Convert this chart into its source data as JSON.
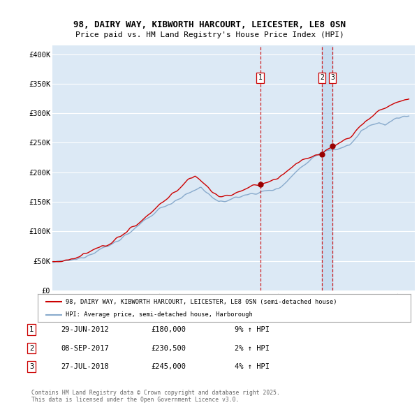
{
  "title_line1": "98, DAIRY WAY, KIBWORTH HARCOURT, LEICESTER, LE8 0SN",
  "title_line2": "Price paid vs. HM Land Registry's House Price Index (HPI)",
  "ylabel_ticks": [
    "£0",
    "£50K",
    "£100K",
    "£150K",
    "£200K",
    "£250K",
    "£300K",
    "£350K",
    "£400K"
  ],
  "ytick_values": [
    0,
    50000,
    100000,
    150000,
    200000,
    250000,
    300000,
    350000,
    400000
  ],
  "ylim": [
    0,
    415000
  ],
  "bg_color": "#dce9f5",
  "grid_color": "#ffffff",
  "line1_color": "#cc0000",
  "line2_color": "#88aacc",
  "highlight_color": "#c8ddf0",
  "legend_label1": "98, DAIRY WAY, KIBWORTH HARCOURT, LEICESTER, LE8 0SN (semi-detached house)",
  "legend_label2": "HPI: Average price, semi-detached house, Harborough",
  "transaction_labels": [
    "1",
    "2",
    "3"
  ],
  "transaction_year_floats": [
    2012.497,
    2017.686,
    2018.571
  ],
  "transaction_prices": [
    180000,
    230500,
    245000
  ],
  "transaction_display_dates": [
    "29-JUN-2012",
    "08-SEP-2017",
    "27-JUL-2018"
  ],
  "transaction_display_prices": [
    "£180,000",
    "£230,500",
    "£245,000"
  ],
  "transaction_hpi_pct": [
    "9%",
    "2%",
    "4%"
  ],
  "footer_text": "Contains HM Land Registry data © Crown copyright and database right 2025.\nThis data is licensed under the Open Government Licence v3.0.",
  "xstart_year": 1995,
  "xend_year": 2025
}
